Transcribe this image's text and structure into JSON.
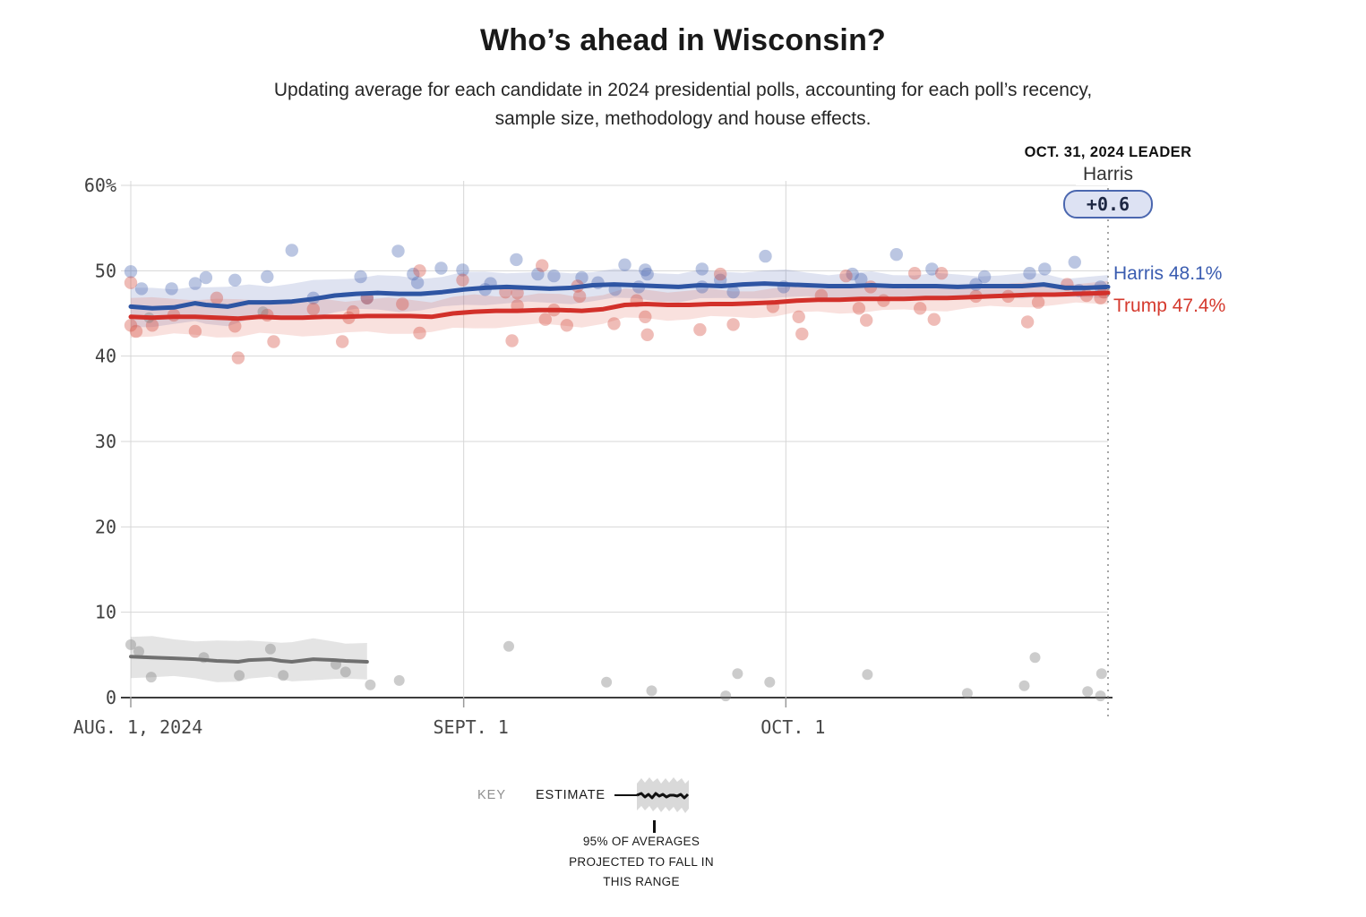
{
  "header": {
    "title": "Who’s ahead in Wisconsin?",
    "subtitle_line1": "Updating average for each candidate in 2024 presidential polls, accounting for each poll’s recency,",
    "subtitle_line2": "sample size, methodology and house effects."
  },
  "leader": {
    "heading": "OCT. 31, 2024 LEADER",
    "name": "Harris",
    "margin": "+0.6"
  },
  "end_labels": {
    "harris": "Harris 48.1%",
    "trump": "Trump 47.4%"
  },
  "key": {
    "label": "KEY",
    "estimate": "ESTIMATE",
    "caption_line1": "95% OF AVERAGES",
    "caption_line2": "PROJECTED TO FALL IN",
    "caption_line3": "THIS RANGE"
  },
  "colors": {
    "harris_line": "#2e55a3",
    "harris_label": "#3a5cb0",
    "harris_band": "rgba(93,116,184,0.20)",
    "harris_dot": "rgba(77,104,178,0.38)",
    "trump_line": "#d2302a",
    "trump_label": "#d53a2e",
    "trump_band": "rgba(225,103,92,0.20)",
    "trump_dot": "rgba(213,80,66,0.38)",
    "other_line": "#707070",
    "other_band": "rgba(170,170,170,0.32)",
    "other_dot": "rgba(128,128,128,0.40)",
    "grid": "#d7d7d7",
    "axis": "#3d3d3d",
    "tick": "#9a9a9a",
    "dotted": "#8f8f8f",
    "badge_bg": "#dde2f3",
    "badge_border": "#4b67af"
  },
  "chart_data": {
    "type": "line",
    "title": "Who’s ahead in Wisconsin?",
    "x_axis": {
      "start_label": "AUG. 1, 2024",
      "end_date_shown": "OCT. 31, 2024",
      "tick_labels": [
        "AUG. 1, 2024",
        "SEPT. 1",
        "OCT. 1"
      ],
      "tick_days": [
        0,
        31,
        61
      ],
      "total_days": 91
    },
    "y_axis": {
      "ticks": [
        0,
        10,
        20,
        30,
        40,
        50,
        60
      ],
      "tick_labels": [
        "0",
        "10",
        "20",
        "30",
        "40",
        "50",
        "60%"
      ],
      "range": [
        0,
        60
      ],
      "unit": "%"
    },
    "series": [
      {
        "key": "harris",
        "label": "Harris 48.1%",
        "final_value": 48.1,
        "color": "#2e55a3",
        "band_color": "rgba(93,116,184,0.20)",
        "band_start": 2.2,
        "band_end": 1.2,
        "points": [
          [
            0,
            45.8
          ],
          [
            2,
            45.6
          ],
          [
            4,
            45.7
          ],
          [
            6,
            46.2
          ],
          [
            7,
            46.0
          ],
          [
            9,
            45.8
          ],
          [
            11,
            46.3
          ],
          [
            13,
            46.3
          ],
          [
            15,
            46.4
          ],
          [
            17,
            46.7
          ],
          [
            19,
            47.1
          ],
          [
            21,
            47.3
          ],
          [
            23,
            47.4
          ],
          [
            25,
            47.3
          ],
          [
            27,
            47.3
          ],
          [
            29,
            47.5
          ],
          [
            31,
            47.8
          ],
          [
            33,
            48.0
          ],
          [
            35,
            48.1
          ],
          [
            37,
            48.0
          ],
          [
            39,
            47.9
          ],
          [
            41,
            48.0
          ],
          [
            43,
            48.3
          ],
          [
            45,
            48.4
          ],
          [
            47,
            48.3
          ],
          [
            49,
            48.2
          ],
          [
            51,
            48.1
          ],
          [
            53,
            48.3
          ],
          [
            55,
            48.2
          ],
          [
            57,
            48.4
          ],
          [
            59,
            48.5
          ],
          [
            61,
            48.4
          ],
          [
            63,
            48.3
          ],
          [
            65,
            48.2
          ],
          [
            67,
            48.2
          ],
          [
            69,
            48.3
          ],
          [
            71,
            48.2
          ],
          [
            73,
            48.2
          ],
          [
            75,
            48.2
          ],
          [
            77,
            48.1
          ],
          [
            79,
            48.2
          ],
          [
            81,
            48.2
          ],
          [
            83,
            48.2
          ],
          [
            85,
            48.4
          ],
          [
            87,
            48.0
          ],
          [
            89,
            48.0
          ],
          [
            91,
            48.1
          ]
        ]
      },
      {
        "key": "trump",
        "label": "Trump 47.4%",
        "final_value": 47.4,
        "color": "#d2302a",
        "band_color": "rgba(225,103,92,0.20)",
        "band_start": 2.2,
        "band_end": 1.2,
        "points": [
          [
            0,
            44.6
          ],
          [
            2,
            44.5
          ],
          [
            4,
            44.6
          ],
          [
            6,
            44.6
          ],
          [
            8,
            44.5
          ],
          [
            10,
            44.4
          ],
          [
            12,
            44.6
          ],
          [
            14,
            44.5
          ],
          [
            16,
            44.5
          ],
          [
            18,
            44.6
          ],
          [
            20,
            44.6
          ],
          [
            22,
            44.7
          ],
          [
            24,
            44.7
          ],
          [
            26,
            44.7
          ],
          [
            28,
            44.6
          ],
          [
            30,
            45.0
          ],
          [
            32,
            45.2
          ],
          [
            34,
            45.3
          ],
          [
            36,
            45.3
          ],
          [
            38,
            45.4
          ],
          [
            40,
            45.4
          ],
          [
            42,
            45.3
          ],
          [
            44,
            45.5
          ],
          [
            46,
            46.0
          ],
          [
            48,
            46.1
          ],
          [
            50,
            46.0
          ],
          [
            52,
            46.0
          ],
          [
            54,
            46.1
          ],
          [
            56,
            46.1
          ],
          [
            58,
            46.2
          ],
          [
            60,
            46.3
          ],
          [
            62,
            46.5
          ],
          [
            64,
            46.6
          ],
          [
            66,
            46.6
          ],
          [
            68,
            46.7
          ],
          [
            70,
            46.7
          ],
          [
            72,
            46.7
          ],
          [
            74,
            46.8
          ],
          [
            76,
            46.8
          ],
          [
            78,
            46.9
          ],
          [
            80,
            47.0
          ],
          [
            82,
            47.1
          ],
          [
            84,
            47.2
          ],
          [
            86,
            47.2
          ],
          [
            88,
            47.3
          ],
          [
            91,
            47.4
          ]
        ]
      },
      {
        "key": "other",
        "label": "",
        "color": "#707070",
        "band_color": "rgba(170,170,170,0.32)",
        "band_start": 2.3,
        "band_end": 2.0,
        "points": [
          [
            0,
            4.8
          ],
          [
            2,
            4.7
          ],
          [
            4,
            4.6
          ],
          [
            6,
            4.5
          ],
          [
            8,
            4.3
          ],
          [
            10,
            4.2
          ],
          [
            11,
            4.4
          ],
          [
            13,
            4.5
          ],
          [
            14,
            4.3
          ],
          [
            15,
            4.2
          ],
          [
            17,
            4.5
          ],
          [
            19,
            4.4
          ],
          [
            20,
            4.3
          ],
          [
            22,
            4.2
          ]
        ]
      }
    ],
    "scatter": [
      {
        "d": 0,
        "v": 49.9,
        "p": "h"
      },
      {
        "d": 1,
        "v": 47.9,
        "p": "h"
      },
      {
        "d": 3.8,
        "v": 47.9,
        "p": "h"
      },
      {
        "d": 6,
        "v": 48.5,
        "p": "h"
      },
      {
        "d": 7,
        "v": 49.2,
        "p": "h"
      },
      {
        "d": 9.7,
        "v": 48.9,
        "p": "h"
      },
      {
        "d": 12.7,
        "v": 49.3,
        "p": "h"
      },
      {
        "d": 15,
        "v": 52.4,
        "p": "h"
      },
      {
        "d": 17,
        "v": 46.8,
        "p": "h"
      },
      {
        "d": 21.4,
        "v": 49.3,
        "p": "h"
      },
      {
        "d": 22,
        "v": 46.8,
        "p": "h"
      },
      {
        "d": 24.9,
        "v": 52.3,
        "p": "h"
      },
      {
        "d": 26.3,
        "v": 49.6,
        "p": "h"
      },
      {
        "d": 26.7,
        "v": 48.6,
        "p": "h"
      },
      {
        "d": 28.9,
        "v": 50.3,
        "p": "h"
      },
      {
        "d": 30.9,
        "v": 50.1,
        "p": "h"
      },
      {
        "d": 33,
        "v": 47.8,
        "p": "h"
      },
      {
        "d": 33.5,
        "v": 48.5,
        "p": "h"
      },
      {
        "d": 35.9,
        "v": 51.3,
        "p": "h"
      },
      {
        "d": 37.9,
        "v": 49.6,
        "p": "h"
      },
      {
        "d": 39.4,
        "v": 49.4,
        "p": "h"
      },
      {
        "d": 42,
        "v": 49.2,
        "p": "h"
      },
      {
        "d": 43.5,
        "v": 48.6,
        "p": "h"
      },
      {
        "d": 45.1,
        "v": 47.8,
        "p": "h"
      },
      {
        "d": 46,
        "v": 50.7,
        "p": "h"
      },
      {
        "d": 47.3,
        "v": 48.1,
        "p": "h"
      },
      {
        "d": 47.9,
        "v": 50.1,
        "p": "h"
      },
      {
        "d": 48.1,
        "v": 49.6,
        "p": "h"
      },
      {
        "d": 53.2,
        "v": 50.2,
        "p": "h"
      },
      {
        "d": 53.2,
        "v": 48.1,
        "p": "h"
      },
      {
        "d": 54.9,
        "v": 48.9,
        "p": "h"
      },
      {
        "d": 56.1,
        "v": 47.5,
        "p": "h"
      },
      {
        "d": 59.1,
        "v": 51.7,
        "p": "h"
      },
      {
        "d": 60.8,
        "v": 48.1,
        "p": "h"
      },
      {
        "d": 67.2,
        "v": 49.6,
        "p": "h"
      },
      {
        "d": 68,
        "v": 49.0,
        "p": "h"
      },
      {
        "d": 71.3,
        "v": 51.9,
        "p": "h"
      },
      {
        "d": 74.6,
        "v": 50.2,
        "p": "h"
      },
      {
        "d": 78.7,
        "v": 48.4,
        "p": "h"
      },
      {
        "d": 79.5,
        "v": 49.3,
        "p": "h"
      },
      {
        "d": 83.7,
        "v": 49.7,
        "p": "h"
      },
      {
        "d": 85.1,
        "v": 50.2,
        "p": "h"
      },
      {
        "d": 87.9,
        "v": 51.0,
        "p": "h"
      },
      {
        "d": 88.3,
        "v": 47.7,
        "p": "h"
      },
      {
        "d": 90.3,
        "v": 48.1,
        "p": "h"
      },
      {
        "d": 0,
        "v": 48.6,
        "p": "t"
      },
      {
        "d": 0,
        "v": 43.6,
        "p": "t"
      },
      {
        "d": 0.5,
        "v": 42.9,
        "p": "t"
      },
      {
        "d": 2,
        "v": 43.6,
        "p": "t"
      },
      {
        "d": 4,
        "v": 44.8,
        "p": "t"
      },
      {
        "d": 6,
        "v": 42.9,
        "p": "t"
      },
      {
        "d": 8,
        "v": 46.8,
        "p": "t"
      },
      {
        "d": 9.7,
        "v": 43.5,
        "p": "t"
      },
      {
        "d": 10,
        "v": 39.8,
        "p": "t"
      },
      {
        "d": 12.7,
        "v": 44.8,
        "p": "t"
      },
      {
        "d": 13.3,
        "v": 41.7,
        "p": "t"
      },
      {
        "d": 17,
        "v": 45.5,
        "p": "t"
      },
      {
        "d": 19.7,
        "v": 41.7,
        "p": "t"
      },
      {
        "d": 20.3,
        "v": 44.5,
        "p": "t"
      },
      {
        "d": 20.7,
        "v": 45.2,
        "p": "t"
      },
      {
        "d": 22,
        "v": 46.8,
        "p": "t"
      },
      {
        "d": 25.3,
        "v": 46.1,
        "p": "t"
      },
      {
        "d": 26.9,
        "v": 50.0,
        "p": "t"
      },
      {
        "d": 26.9,
        "v": 42.7,
        "p": "t"
      },
      {
        "d": 30.9,
        "v": 48.9,
        "p": "t"
      },
      {
        "d": 34.9,
        "v": 47.5,
        "p": "t"
      },
      {
        "d": 35.5,
        "v": 41.8,
        "p": "t"
      },
      {
        "d": 36,
        "v": 47.4,
        "p": "t"
      },
      {
        "d": 36,
        "v": 45.9,
        "p": "t"
      },
      {
        "d": 38.3,
        "v": 50.6,
        "p": "t"
      },
      {
        "d": 38.6,
        "v": 44.3,
        "p": "t"
      },
      {
        "d": 39.4,
        "v": 45.4,
        "p": "t"
      },
      {
        "d": 40.6,
        "v": 43.6,
        "p": "t"
      },
      {
        "d": 41.6,
        "v": 48.2,
        "p": "t"
      },
      {
        "d": 41.8,
        "v": 47.0,
        "p": "t"
      },
      {
        "d": 45,
        "v": 43.8,
        "p": "t"
      },
      {
        "d": 47.1,
        "v": 46.5,
        "p": "t"
      },
      {
        "d": 47.9,
        "v": 44.6,
        "p": "t"
      },
      {
        "d": 48.1,
        "v": 42.5,
        "p": "t"
      },
      {
        "d": 53,
        "v": 43.1,
        "p": "t"
      },
      {
        "d": 54.9,
        "v": 49.6,
        "p": "t"
      },
      {
        "d": 56.1,
        "v": 43.7,
        "p": "t"
      },
      {
        "d": 59.8,
        "v": 45.8,
        "p": "t"
      },
      {
        "d": 62.2,
        "v": 44.6,
        "p": "t"
      },
      {
        "d": 62.5,
        "v": 42.6,
        "p": "t"
      },
      {
        "d": 64.3,
        "v": 47.1,
        "p": "t"
      },
      {
        "d": 66.6,
        "v": 49.4,
        "p": "t"
      },
      {
        "d": 67.8,
        "v": 45.6,
        "p": "t"
      },
      {
        "d": 68.5,
        "v": 44.2,
        "p": "t"
      },
      {
        "d": 68.9,
        "v": 48.1,
        "p": "t"
      },
      {
        "d": 70.1,
        "v": 46.5,
        "p": "t"
      },
      {
        "d": 73,
        "v": 49.7,
        "p": "t"
      },
      {
        "d": 73.5,
        "v": 45.6,
        "p": "t"
      },
      {
        "d": 74.8,
        "v": 44.3,
        "p": "t"
      },
      {
        "d": 75.5,
        "v": 49.7,
        "p": "t"
      },
      {
        "d": 78.7,
        "v": 47.0,
        "p": "t"
      },
      {
        "d": 81.7,
        "v": 47.0,
        "p": "t"
      },
      {
        "d": 83.5,
        "v": 44.0,
        "p": "t"
      },
      {
        "d": 84.5,
        "v": 46.3,
        "p": "t"
      },
      {
        "d": 87.2,
        "v": 48.4,
        "p": "t"
      },
      {
        "d": 89,
        "v": 47.1,
        "p": "t"
      },
      {
        "d": 90.3,
        "v": 46.8,
        "p": "t"
      },
      {
        "d": 90.6,
        "v": 47.5,
        "p": "t"
      },
      {
        "d": 0,
        "v": 6.2,
        "p": "o"
      },
      {
        "d": 0.75,
        "v": 5.4,
        "p": "o"
      },
      {
        "d": 1.9,
        "v": 2.4,
        "p": "o"
      },
      {
        "d": 1.7,
        "v": 44.5,
        "p": "o"
      },
      {
        "d": 6.8,
        "v": 4.7,
        "p": "o"
      },
      {
        "d": 10.1,
        "v": 2.6,
        "p": "o"
      },
      {
        "d": 12.3,
        "v": 45.2,
        "p": "o"
      },
      {
        "d": 13,
        "v": 5.7,
        "p": "o"
      },
      {
        "d": 14.2,
        "v": 2.6,
        "p": "o"
      },
      {
        "d": 19.1,
        "v": 3.9,
        "p": "o"
      },
      {
        "d": 20,
        "v": 3.0,
        "p": "o"
      },
      {
        "d": 22.3,
        "v": 1.5,
        "p": "o"
      },
      {
        "d": 25,
        "v": 2.0,
        "p": "o"
      },
      {
        "d": 35.2,
        "v": 6.0,
        "p": "o"
      },
      {
        "d": 44.3,
        "v": 1.8,
        "p": "o"
      },
      {
        "d": 48.5,
        "v": 0.8,
        "p": "o"
      },
      {
        "d": 55.4,
        "v": 0.2,
        "p": "o"
      },
      {
        "d": 56.5,
        "v": 2.8,
        "p": "o"
      },
      {
        "d": 59.5,
        "v": 1.8,
        "p": "o"
      },
      {
        "d": 68.6,
        "v": 2.7,
        "p": "o"
      },
      {
        "d": 77.9,
        "v": 0.5,
        "p": "o"
      },
      {
        "d": 83.2,
        "v": 1.4,
        "p": "o"
      },
      {
        "d": 84.2,
        "v": 4.7,
        "p": "o"
      },
      {
        "d": 89.1,
        "v": 0.7,
        "p": "o"
      },
      {
        "d": 90.4,
        "v": 2.8,
        "p": "o"
      },
      {
        "d": 90.3,
        "v": 0.2,
        "p": "o"
      }
    ],
    "annotations": {
      "leader_date": "OCT. 31, 2024",
      "leader_name": "Harris",
      "leader_margin": "+0.6"
    },
    "grid": true,
    "legend_position": "bottom-key"
  }
}
